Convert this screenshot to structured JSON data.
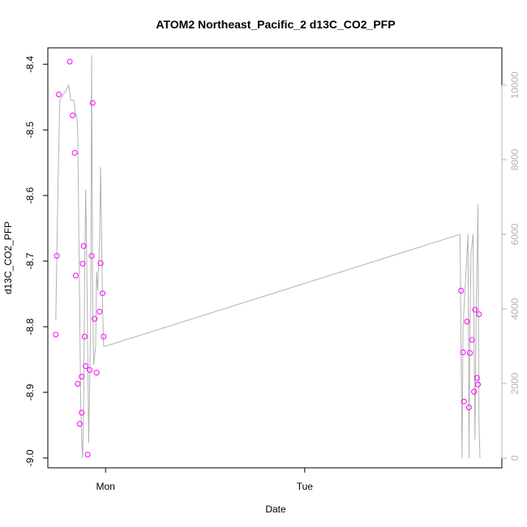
{
  "chart_data": {
    "type": "scatter",
    "title": "ATOM2 Northeast_Pacific_2 d13C_CO2_PFP",
    "xlabel": "Date",
    "ylabel": "d13C_CO2_PFP",
    "x_ticks": [
      {
        "label": "Mon",
        "value": 0.0
      },
      {
        "label": "Tue",
        "value": 1.0
      }
    ],
    "xlim": [
      -0.29,
      1.99
    ],
    "ylim": [
      -9.015,
      -8.375
    ],
    "y_ticks": [
      -9.0,
      -8.9,
      -8.8,
      -8.7,
      -8.6,
      -8.5,
      -8.4
    ],
    "y2lim": [
      -260,
      11000
    ],
    "y2_ticks": [
      0,
      2000,
      4000,
      6000,
      8000,
      10000
    ],
    "series": [
      {
        "kind": "points",
        "color": "#ff00ff",
        "x": [
          -0.25,
          -0.245,
          -0.235,
          -0.18,
          -0.165,
          -0.155,
          -0.15,
          -0.14,
          -0.13,
          -0.12,
          -0.12,
          -0.115,
          -0.11,
          -0.105,
          -0.1,
          -0.09,
          -0.08,
          -0.07,
          -0.065,
          -0.055,
          -0.045,
          -0.03,
          -0.025,
          -0.015,
          -0.01,
          1.785,
          1.795,
          1.8,
          1.815,
          1.825,
          1.83,
          1.84,
          1.85,
          1.855,
          1.865,
          1.87,
          1.875
        ],
        "y": [
          -8.812,
          -8.692,
          -8.446,
          -8.396,
          -8.478,
          -8.535,
          -8.722,
          -8.887,
          -8.948,
          -8.931,
          -8.876,
          -8.704,
          -8.677,
          -8.815,
          -8.86,
          -8.995,
          -8.866,
          -8.692,
          -8.459,
          -8.788,
          -8.87,
          -8.777,
          -8.703,
          -8.749,
          -8.815,
          -8.745,
          -8.839,
          -8.914,
          -8.792,
          -8.923,
          -8.84,
          -8.82,
          -8.899,
          -8.774,
          -8.878,
          -8.888,
          -8.781
        ]
      },
      {
        "kind": "line",
        "color": "#b3b3b3",
        "axis": "right",
        "x": [
          -0.25,
          -0.24,
          -0.23,
          -0.2,
          -0.185,
          -0.175,
          -0.165,
          -0.16,
          -0.15,
          -0.145,
          -0.14,
          -0.125,
          -0.12,
          -0.115,
          -0.11,
          -0.105,
          -0.1,
          -0.095,
          -0.085,
          -0.075,
          -0.07,
          -0.065,
          -0.06,
          -0.05,
          -0.045,
          -0.04,
          -0.03,
          -0.025,
          -0.015,
          -0.01,
          0.0,
          1.78,
          1.79,
          1.795,
          1.805,
          1.82,
          1.825,
          1.83,
          1.835,
          1.845,
          1.855,
          1.86,
          1.87,
          1.875,
          1.88
        ],
        "y": [
          3700,
          7000,
          9600,
          9850,
          10000,
          9600,
          9600,
          9600,
          9200,
          9200,
          8800,
          1500,
          500,
          0,
          1500,
          5000,
          7200,
          5500,
          400,
          3500,
          10800,
          4500,
          2500,
          3000,
          5000,
          4500,
          5800,
          7800,
          4000,
          3000,
          3000,
          6000,
          0,
          3500,
          4500,
          6000,
          0,
          3500,
          5500,
          6000,
          500,
          3500,
          6800,
          1000,
          0
        ]
      }
    ]
  }
}
